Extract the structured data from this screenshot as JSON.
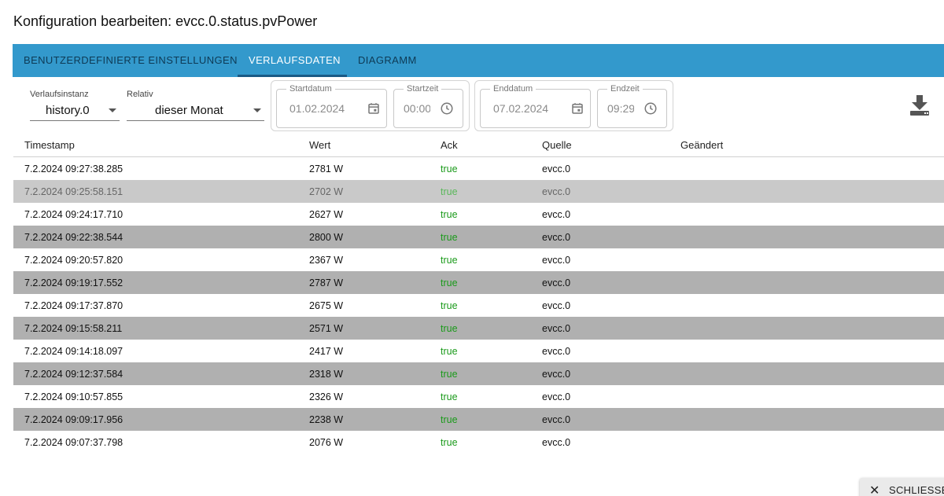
{
  "dialog": {
    "title": "Konfiguration bearbeiten: evcc.0.status.pvPower"
  },
  "tabs": [
    {
      "label": "BENUTZERDEFINIERTE EINSTELLUNGEN",
      "active": false
    },
    {
      "label": "VERLAUFSDATEN",
      "active": true
    },
    {
      "label": "DIAGRAMM",
      "active": false
    }
  ],
  "filters": {
    "instance": {
      "label": "Verlaufsinstanz",
      "value": "history.0"
    },
    "relative": {
      "label": "Relativ",
      "value": "dieser Monat"
    },
    "start_date": {
      "label": "Startdatum",
      "value": "01.02.2024"
    },
    "start_time": {
      "label": "Startzeit",
      "value": "00:00"
    },
    "end_date": {
      "label": "Enddatum",
      "value": "07.02.2024"
    },
    "end_time": {
      "label": "Endzeit",
      "value": "09:29"
    }
  },
  "table": {
    "headers": {
      "timestamp": "Timestamp",
      "value": "Wert",
      "ack": "Ack",
      "source": "Quelle",
      "changed": "Geändert"
    },
    "rows": [
      {
        "timestamp": "7.2.2024 09:27:38.285",
        "value": "2781 W",
        "ack": "true",
        "source": "evcc.0"
      },
      {
        "timestamp": "7.2.2024 09:25:58.151",
        "value": "2702 W",
        "ack": "true",
        "source": "evcc.0"
      },
      {
        "timestamp": "7.2.2024 09:24:17.710",
        "value": "2627 W",
        "ack": "true",
        "source": "evcc.0"
      },
      {
        "timestamp": "7.2.2024 09:22:38.544",
        "value": "2800 W",
        "ack": "true",
        "source": "evcc.0"
      },
      {
        "timestamp": "7.2.2024 09:20:57.820",
        "value": "2367 W",
        "ack": "true",
        "source": "evcc.0"
      },
      {
        "timestamp": "7.2.2024 09:19:17.552",
        "value": "2787 W",
        "ack": "true",
        "source": "evcc.0"
      },
      {
        "timestamp": "7.2.2024 09:17:37.870",
        "value": "2675 W",
        "ack": "true",
        "source": "evcc.0"
      },
      {
        "timestamp": "7.2.2024 09:15:58.211",
        "value": "2571 W",
        "ack": "true",
        "source": "evcc.0"
      },
      {
        "timestamp": "7.2.2024 09:14:18.097",
        "value": "2417 W",
        "ack": "true",
        "source": "evcc.0"
      },
      {
        "timestamp": "7.2.2024 09:12:37.584",
        "value": "2318 W",
        "ack": "true",
        "source": "evcc.0"
      },
      {
        "timestamp": "7.2.2024 09:10:57.855",
        "value": "2326 W",
        "ack": "true",
        "source": "evcc.0"
      },
      {
        "timestamp": "7.2.2024 09:09:17.956",
        "value": "2238 W",
        "ack": "true",
        "source": "evcc.0"
      },
      {
        "timestamp": "7.2.2024 09:07:37.798",
        "value": "2076 W",
        "ack": "true",
        "source": "evcc.0"
      }
    ]
  },
  "footer": {
    "close_label": "SCHLIESSEN"
  },
  "icons": {
    "calendar": "calendar-icon",
    "clock": "clock-icon",
    "download": "download-icon",
    "close": "close-icon",
    "dropdown": "chevron-down-icon"
  },
  "colors": {
    "tabbar": "#3399cc",
    "ack_true": "#1a9a1a",
    "row_alt": "#b0b0b0"
  }
}
